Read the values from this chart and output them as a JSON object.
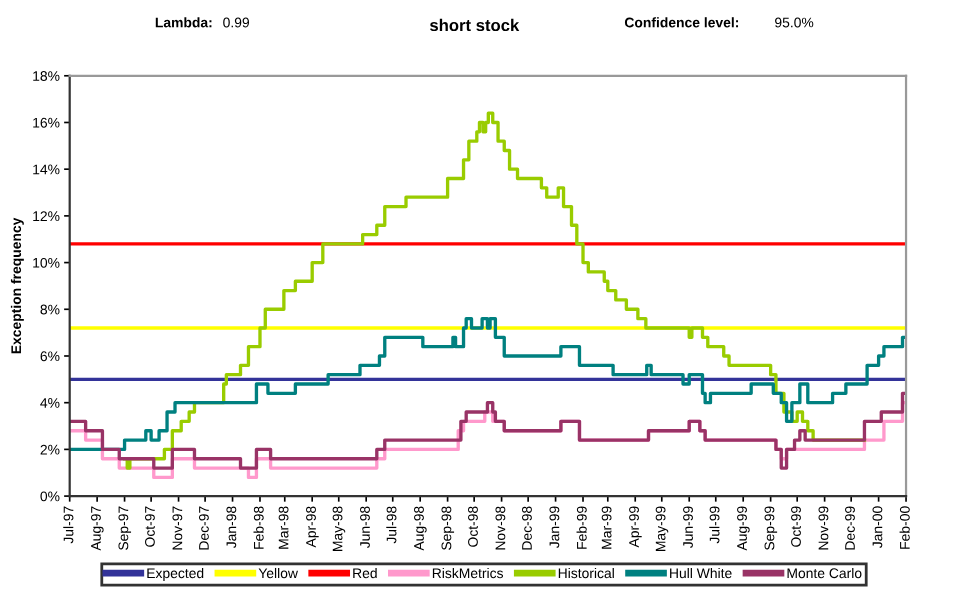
{
  "chart_data": {
    "type": "step",
    "title": "short stock",
    "annotations": [
      "Lambda:",
      "0.99",
      "Confidence level:",
      "95.0%"
    ],
    "ylabel": "Exception frequency",
    "ylim": [
      0,
      18
    ],
    "yticks": [
      {
        "value": 0,
        "label": "0%"
      },
      {
        "value": 2,
        "label": "2%"
      },
      {
        "value": 4,
        "label": "4%"
      },
      {
        "value": 6,
        "label": "6%"
      },
      {
        "value": 8,
        "label": "8%"
      },
      {
        "value": 10,
        "label": "10%"
      },
      {
        "value": 12,
        "label": "12%"
      },
      {
        "value": 14,
        "label": "14%"
      },
      {
        "value": 16,
        "label": "16%"
      },
      {
        "value": 18,
        "label": "18%"
      }
    ],
    "xlim": [
      "1997-07-01",
      "2000-02-01"
    ],
    "xticks": [
      {
        "value": "1997-07-01",
        "label": "Jul-97"
      },
      {
        "value": "1997-08-01",
        "label": "Aug-97"
      },
      {
        "value": "1997-09-01",
        "label": "Sep-97"
      },
      {
        "value": "1997-10-01",
        "label": "Oct-97"
      },
      {
        "value": "1997-11-01",
        "label": "Nov-97"
      },
      {
        "value": "1997-12-01",
        "label": "Dec-97"
      },
      {
        "value": "1998-01-01",
        "label": "Jan-98"
      },
      {
        "value": "1998-02-01",
        "label": "Feb-98"
      },
      {
        "value": "1998-03-01",
        "label": "Mar-98"
      },
      {
        "value": "1998-04-01",
        "label": "Apr-98"
      },
      {
        "value": "1998-05-01",
        "label": "May-98"
      },
      {
        "value": "1998-06-01",
        "label": "Jun-98"
      },
      {
        "value": "1998-07-01",
        "label": "Jul-98"
      },
      {
        "value": "1998-08-01",
        "label": "Aug-98"
      },
      {
        "value": "1998-09-01",
        "label": "Sep-98"
      },
      {
        "value": "1998-10-01",
        "label": "Oct-98"
      },
      {
        "value": "1998-11-01",
        "label": "Nov-98"
      },
      {
        "value": "1998-12-01",
        "label": "Dec-98"
      },
      {
        "value": "1999-01-01",
        "label": "Jan-99"
      },
      {
        "value": "1999-02-01",
        "label": "Feb-99"
      },
      {
        "value": "1999-03-01",
        "label": "Mar-99"
      },
      {
        "value": "1999-04-01",
        "label": "Apr-99"
      },
      {
        "value": "1999-05-01",
        "label": "May-99"
      },
      {
        "value": "1999-06-01",
        "label": "Jun-99"
      },
      {
        "value": "1999-07-01",
        "label": "Jul-99"
      },
      {
        "value": "1999-08-01",
        "label": "Aug-99"
      },
      {
        "value": "1999-09-01",
        "label": "Sep-99"
      },
      {
        "value": "1999-10-01",
        "label": "Oct-99"
      },
      {
        "value": "1999-11-01",
        "label": "Nov-99"
      },
      {
        "value": "1999-12-01",
        "label": "Dec-99"
      },
      {
        "value": "2000-01-01",
        "label": "Jan-00"
      },
      {
        "value": "2000-02-01",
        "label": "Feb-00"
      }
    ],
    "grid": false,
    "legend": "bottom",
    "marker": "none",
    "line_style": "solid",
    "series": [
      {
        "name": "Expected",
        "type": "line",
        "color": "#333399",
        "x": [
          "1997-07-01",
          "2000-02-01"
        ],
        "values": [
          5,
          5
        ]
      },
      {
        "name": "Yellow",
        "type": "line",
        "color": "#ffff00",
        "x": [
          "1997-07-01",
          "2000-02-01"
        ],
        "values": [
          7.2,
          7.2
        ]
      },
      {
        "name": "Red",
        "type": "line",
        "color": "#ff0000",
        "x": [
          "1997-07-01",
          "2000-02-01"
        ],
        "values": [
          10.8,
          10.8
        ]
      },
      {
        "name": "RiskMetrics",
        "color": "#ff99cc",
        "x": [
          "1997-07-01",
          "1997-07-19",
          "1997-08-07",
          "1997-08-26",
          "1997-10-04",
          "1997-10-25",
          "1997-11-19",
          "1998-01-19",
          "1998-01-28",
          "1998-02-13",
          "1998-06-13",
          "1998-06-22",
          "1998-09-13",
          "1998-09-19",
          "1998-10-13",
          "1998-10-22",
          "1998-11-04",
          "1999-01-07",
          "1999-01-28",
          "1999-04-16",
          "1999-06-01",
          "1999-06-13",
          "1999-06-19",
          "1999-09-07",
          "1999-09-13",
          "1999-09-19",
          "1999-12-16",
          "2000-01-07",
          "2000-01-28",
          "2000-02-01"
        ],
        "values": [
          2.8,
          2.4,
          1.6,
          1.2,
          0.8,
          1.6,
          1.2,
          0.8,
          1.6,
          1.2,
          1.6,
          2.0,
          2.8,
          3.2,
          3.6,
          3.2,
          2.8,
          3.2,
          2.4,
          2.8,
          3.2,
          2.8,
          2.4,
          2.0,
          1.6,
          2.0,
          2.4,
          3.2,
          4.0,
          4.0
        ]
      },
      {
        "name": "Historical",
        "color": "#99cc00",
        "x": [
          "1997-09-01",
          "1997-09-04",
          "1997-09-07",
          "1997-10-16",
          "1997-10-25",
          "1997-11-04",
          "1997-11-13",
          "1997-11-19",
          "1997-12-22",
          "1997-12-25",
          "1998-01-10",
          "1998-01-19",
          "1998-02-01",
          "1998-02-07",
          "1998-02-28",
          "1998-03-13",
          "1998-04-01",
          "1998-04-13",
          "1998-05-28",
          "1998-06-13",
          "1998-06-22",
          "1998-07-16",
          "1998-09-01",
          "1998-09-19",
          "1998-09-25",
          "1998-10-04",
          "1998-10-07",
          "1998-10-11",
          "1998-10-14",
          "1998-10-17",
          "1998-10-22",
          "1998-10-28",
          "1998-11-04",
          "1998-11-10",
          "1998-11-19",
          "1998-12-16",
          "1998-12-22",
          "1999-01-04",
          "1999-01-10",
          "1999-01-19",
          "1999-01-25",
          "1999-02-01",
          "1999-02-07",
          "1999-02-25",
          "1999-03-01",
          "1999-03-10",
          "1999-03-22",
          "1999-04-04",
          "1999-04-13",
          "1999-06-01",
          "1999-06-04",
          "1999-06-16",
          "1999-06-22",
          "1999-07-10",
          "1999-07-16",
          "1999-09-01",
          "1999-09-07",
          "1999-09-16",
          "1999-09-25",
          "1999-10-01",
          "1999-10-07",
          "1999-10-13",
          "1999-10-19",
          "1999-12-16"
        ],
        "values": [
          1.6,
          1.2,
          1.6,
          2.0,
          2.8,
          3.2,
          3.6,
          4.0,
          4.8,
          5.2,
          5.6,
          6.4,
          7.2,
          8.0,
          8.8,
          9.2,
          10.0,
          10.8,
          11.2,
          11.6,
          12.4,
          12.8,
          13.6,
          14.4,
          15.2,
          15.6,
          16.0,
          15.6,
          16.0,
          16.4,
          16.0,
          15.2,
          14.8,
          14.0,
          13.6,
          13.2,
          12.8,
          13.2,
          12.4,
          11.6,
          10.8,
          10.0,
          9.6,
          9.2,
          8.8,
          8.4,
          8.0,
          7.6,
          7.2,
          6.8,
          7.2,
          6.8,
          6.4,
          6.0,
          5.6,
          5.2,
          4.4,
          3.6,
          3.2,
          3.6,
          3.2,
          2.8,
          2.4,
          2.4
        ]
      },
      {
        "name": "Hull White",
        "color": "#008080",
        "x": [
          "1997-07-01",
          "1997-09-01",
          "1997-09-25",
          "1997-10-01",
          "1997-10-10",
          "1997-10-19",
          "1997-10-28",
          "1998-01-28",
          "1998-02-10",
          "1998-03-13",
          "1998-04-19",
          "1998-05-25",
          "1998-06-16",
          "1998-06-22",
          "1998-08-04",
          "1998-09-07",
          "1998-09-10",
          "1998-09-19",
          "1998-09-22",
          "1998-09-28",
          "1998-10-10",
          "1998-10-16",
          "1998-10-19",
          "1998-10-25",
          "1998-11-04",
          "1999-01-07",
          "1999-01-28",
          "1999-03-07",
          "1999-04-14",
          "1999-04-19",
          "1999-05-25",
          "1999-06-01",
          "1999-06-16",
          "1999-06-19",
          "1999-06-25",
          "1999-08-10",
          "1999-09-04",
          "1999-09-13",
          "1999-09-19",
          "1999-09-25",
          "1999-10-04",
          "1999-10-13",
          "1999-11-10",
          "1999-11-25",
          "1999-12-19",
          "2000-01-01",
          "2000-01-07",
          "2000-01-28",
          "2000-02-01"
        ],
        "values": [
          2.0,
          2.4,
          2.8,
          2.4,
          2.8,
          3.6,
          4.0,
          4.8,
          4.4,
          4.8,
          5.2,
          5.6,
          6.0,
          6.8,
          6.4,
          6.8,
          6.4,
          7.2,
          7.6,
          7.2,
          7.6,
          7.2,
          7.6,
          6.8,
          6.0,
          6.4,
          5.6,
          5.2,
          5.6,
          5.2,
          4.8,
          5.2,
          4.4,
          4.0,
          4.4,
          4.8,
          4.4,
          4.0,
          3.2,
          4.0,
          4.8,
          4.0,
          4.4,
          4.8,
          5.6,
          6.0,
          6.4,
          6.8,
          6.8
        ]
      },
      {
        "name": "Monte Carlo",
        "color": "#993366",
        "x": [
          "1997-07-01",
          "1997-07-19",
          "1997-08-07",
          "1997-08-26",
          "1997-10-04",
          "1997-10-25",
          "1997-11-19",
          "1998-01-10",
          "1998-01-28",
          "1998-02-13",
          "1998-06-13",
          "1998-06-22",
          "1998-09-16",
          "1998-09-22",
          "1998-10-16",
          "1998-10-22",
          "1998-10-25",
          "1998-11-04",
          "1999-01-07",
          "1999-01-28",
          "1999-04-16",
          "1999-06-01",
          "1999-06-13",
          "1999-06-19",
          "1999-09-07",
          "1999-09-13",
          "1999-09-19",
          "1999-09-28",
          "1999-10-04",
          "1999-10-10",
          "1999-12-16",
          "2000-01-04",
          "2000-01-28",
          "2000-02-01"
        ],
        "values": [
          3.2,
          2.8,
          2.0,
          1.6,
          1.2,
          2.0,
          1.6,
          1.2,
          2.0,
          1.6,
          2.0,
          2.4,
          3.2,
          3.6,
          4.0,
          3.6,
          3.2,
          2.8,
          3.2,
          2.4,
          2.8,
          3.2,
          2.8,
          2.4,
          2.0,
          1.2,
          2.0,
          2.4,
          2.8,
          2.4,
          3.2,
          3.6,
          4.4,
          4.4
        ]
      }
    ]
  }
}
